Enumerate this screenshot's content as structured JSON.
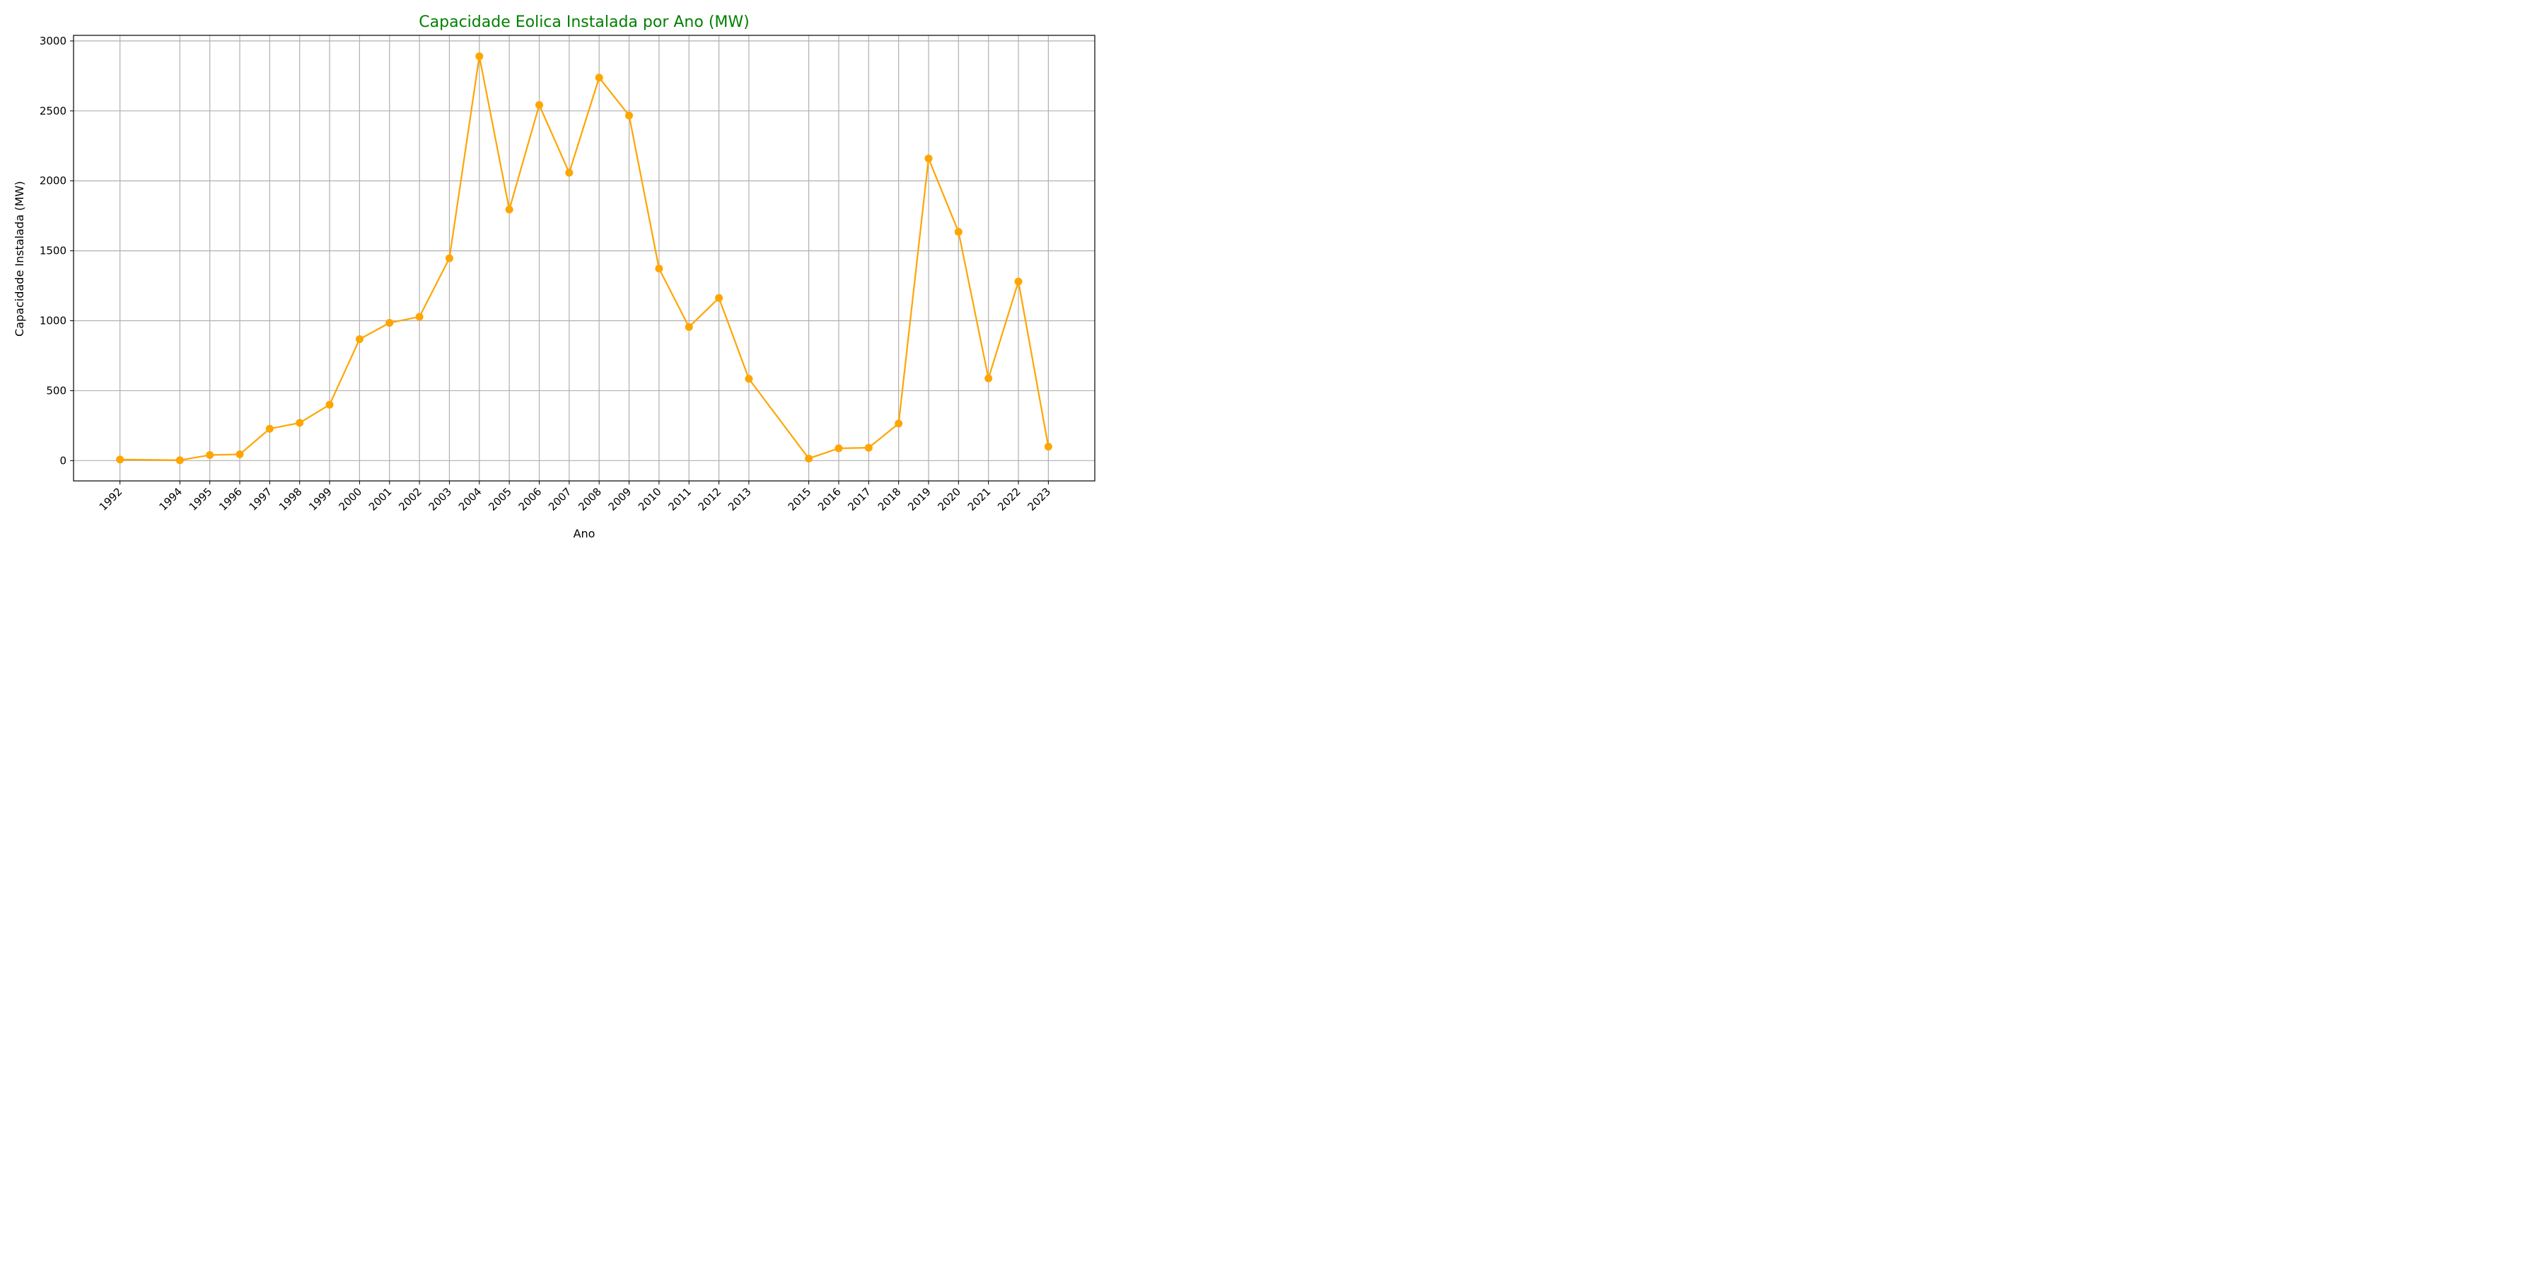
{
  "chart_data": {
    "type": "line",
    "title": "Capacidade Eolica Instalada por Ano (MW)",
    "xlabel": "Ano",
    "ylabel": "Capacidade Instalada (MW)",
    "x": [
      1992,
      1994,
      1995,
      1996,
      1997,
      1998,
      1999,
      2000,
      2001,
      2002,
      2003,
      2004,
      2005,
      2006,
      2007,
      2008,
      2009,
      2010,
      2011,
      2012,
      2013,
      2015,
      2016,
      2017,
      2018,
      2019,
      2020,
      2021,
      2022,
      2023
    ],
    "x_tick_labels": [
      "1992",
      "1994",
      "1995",
      "1996",
      "1997",
      "1998",
      "1999",
      "2000",
      "2001",
      "2002",
      "2003",
      "2004",
      "2005",
      "2006",
      "2007",
      "2008",
      "2009",
      "2010",
      "2011",
      "2012",
      "2013",
      "2015",
      "2016",
      "2017",
      "2018",
      "2019",
      "2020",
      "2021",
      "2022",
      "2023"
    ],
    "series": [
      {
        "values": [
          8,
          3,
          40,
          45,
          228,
          270,
          400,
          868,
          985,
          1028,
          1447,
          2890,
          1795,
          2542,
          2058,
          2738,
          2467,
          1373,
          955,
          1163,
          585,
          15,
          88,
          92,
          265,
          2160,
          1635,
          588,
          1280,
          100
        ]
      }
    ],
    "xlim": [
      1990.45,
      2024.55
    ],
    "ylim": [
      -145,
      3040
    ],
    "y_ticks": [
      0,
      500,
      1000,
      1500,
      2000,
      2500,
      3000
    ],
    "y_tick_labels": [
      "0",
      "500",
      "1000",
      "1500",
      "2000",
      "2500",
      "3000"
    ],
    "grid": true,
    "colors": {
      "line": "#FFA500",
      "title": "#008000"
    }
  }
}
